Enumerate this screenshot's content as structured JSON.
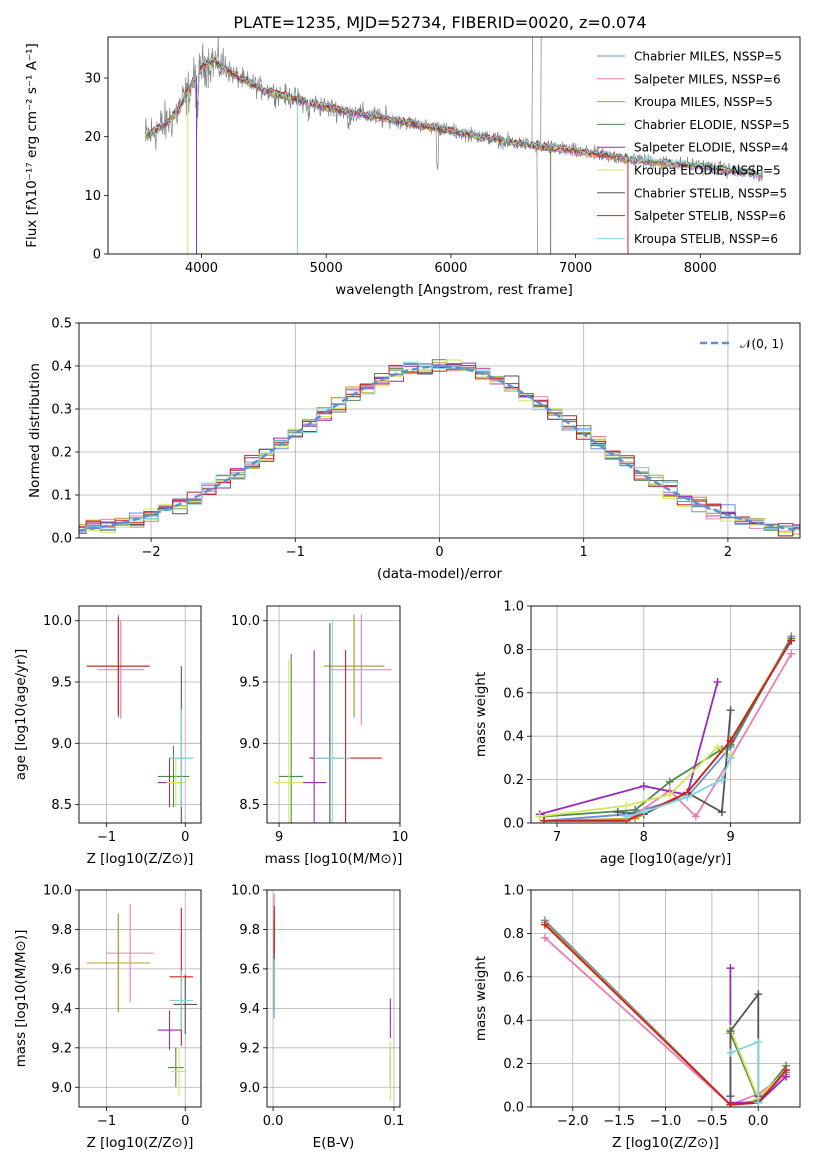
{
  "colors": [
    "#6a8fd8",
    "#e87fb0",
    "#b8a020",
    "#4f8a4f",
    "#9a2ab8",
    "#d4e65a",
    "#555555",
    "#cc2222",
    "#7fd6df"
  ],
  "chart_data": [
    {
      "id": "spectrum",
      "type": "line",
      "title": "PLATE=1235, MJD=52734, FIBERID=0020, z=0.074",
      "xlabel": "wavelength [Angstrom, rest frame]",
      "ylabel": "Flux [fλ10⁻¹⁷ erg cm⁻² s⁻¹ A⁻¹]",
      "xlim": [
        3250,
        8800
      ],
      "ylim": [
        0,
        37
      ],
      "xticks": [
        4000,
        5000,
        6000,
        7000,
        8000
      ],
      "yticks": [
        0,
        10,
        20,
        30
      ],
      "legend_position": "top-right",
      "legend": [
        "Chabrier MILES, NSSP=5",
        "Salpeter MILES, NSSP=6",
        "Kroupa MILES, NSSP=5",
        "Chabrier ELODIE, NSSP=5",
        "Salpeter ELODIE, NSSP=4",
        "Kroupa ELODIE, NSSP=5",
        "Chabrier STELIB, NSSP=5",
        "Salpeter STELIB, NSSP=6",
        "Kroupa STELIB, NSSP=6"
      ],
      "continuum": {
        "x": [
          3550,
          3700,
          3800,
          3900,
          4000,
          4100,
          4300,
          4500,
          5000,
          5500,
          6000,
          6500,
          7000,
          7500,
          8000,
          8500
        ],
        "y": [
          20,
          22,
          24,
          28,
          32,
          33,
          30,
          28,
          25,
          23,
          21,
          19,
          17.5,
          16,
          15,
          13.5
        ]
      }
    },
    {
      "id": "residuals",
      "type": "histogram",
      "xlabel": "(data-model)/error",
      "ylabel": "Normed distribution",
      "xlim": [
        -2.5,
        2.5
      ],
      "ylim": [
        0,
        0.5
      ],
      "xticks": [
        -2,
        -1,
        0,
        1,
        2
      ],
      "yticks": [
        0.0,
        0.1,
        0.2,
        0.3,
        0.4,
        0.5
      ],
      "legend": [
        "𝒩(0, 1)"
      ],
      "legend_position": "top-right"
    },
    {
      "id": "age_vs_Z",
      "type": "scatter",
      "xlabel": "Z [log10(Z/Z⊙)]",
      "ylabel": "age  [log10(age/yr)]",
      "xlim": [
        -1.35,
        0.2
      ],
      "ylim": [
        8.35,
        10.12
      ],
      "xticks": [
        -1,
        0
      ],
      "yticks": [
        8.5,
        9.0,
        9.5,
        10.0
      ],
      "points": [
        {
          "x": -0.85,
          "xerr": 0.4,
          "y": 9.63,
          "yerr": 0.42
        },
        {
          "x": -0.82,
          "xerr": 0.3,
          "y": 9.6,
          "yerr": 0.4
        },
        {
          "x": -0.85,
          "xerr": 0.4,
          "y": 9.63,
          "yerr": 0.4
        },
        {
          "x": -0.15,
          "xerr": 0.2,
          "y": 8.73,
          "yerr": 0.25
        },
        {
          "x": -0.2,
          "xerr": 0.15,
          "y": 8.68,
          "yerr": 0.2
        },
        {
          "x": -0.12,
          "xerr": 0.12,
          "y": 8.68,
          "yerr": 0.2
        },
        {
          "x": -0.05,
          "xerr": 0.15,
          "y": 8.88,
          "yerr": 0.75
        },
        {
          "x": -0.85,
          "xerr": 0.4,
          "y": 9.63,
          "yerr": 0.4
        },
        {
          "x": -0.05,
          "xerr": 0.15,
          "y": 8.88,
          "yerr": 0.4
        }
      ]
    },
    {
      "id": "age_vs_mass",
      "type": "scatter",
      "xlabel": "mass [log10(M/M⊙)]",
      "ylabel": "",
      "xlim": [
        8.9,
        10.0
      ],
      "ylim": [
        8.35,
        10.12
      ],
      "xticks": [
        9,
        10
      ],
      "yticks": [
        8.5,
        9.0,
        9.5,
        10.0
      ],
      "points": [
        {
          "x": 9.62,
          "xerr": 0.25,
          "y": 9.63,
          "yerr": 0.42
        },
        {
          "x": 9.68,
          "xerr": 0.25,
          "y": 9.6,
          "yerr": 0.45
        },
        {
          "x": 9.62,
          "xerr": 0.25,
          "y": 9.63,
          "yerr": 0.4
        },
        {
          "x": 9.1,
          "xerr": 0.1,
          "y": 8.73,
          "yerr": 1.0
        },
        {
          "x": 9.29,
          "xerr": 0.1,
          "y": 8.68,
          "yerr": 1.08
        },
        {
          "x": 9.08,
          "xerr": 0.12,
          "y": 8.68,
          "yerr": 1.0
        },
        {
          "x": 9.42,
          "xerr": 0.15,
          "y": 8.88,
          "yerr": 1.1
        },
        {
          "x": 9.55,
          "xerr": 0.3,
          "y": 8.88,
          "yerr": 0.88
        },
        {
          "x": 9.44,
          "xerr": 0.15,
          "y": 8.88,
          "yerr": 1.13
        }
      ]
    },
    {
      "id": "weight_vs_age",
      "type": "line",
      "xlabel": "age  [log10(age/yr)]",
      "ylabel": "mass weight",
      "xlim": [
        6.7,
        9.8
      ],
      "ylim": [
        0.0,
        1.0
      ],
      "xticks": [
        7,
        8,
        9
      ],
      "yticks": [
        0.0,
        0.2,
        0.4,
        0.6,
        0.8,
        1.0
      ],
      "series": [
        {
          "x": [
            6.85,
            7.8,
            8.5,
            9.0,
            9.7
          ],
          "y": [
            0.01,
            0.04,
            0.12,
            0.35,
            0.86
          ]
        },
        {
          "x": [
            6.85,
            7.8,
            8.3,
            8.6,
            9.0,
            9.7
          ],
          "y": [
            0.01,
            0.01,
            0.15,
            0.03,
            0.3,
            0.78
          ]
        },
        {
          "x": [
            6.85,
            7.9,
            8.5,
            9.0,
            9.7
          ],
          "y": [
            0.01,
            0.02,
            0.14,
            0.38,
            0.85
          ]
        },
        {
          "x": [
            6.85,
            7.9,
            8.3,
            8.9,
            9.0,
            9.7
          ],
          "y": [
            0.03,
            0.06,
            0.19,
            0.34,
            0.36,
            0.85
          ]
        },
        {
          "x": [
            6.8,
            8.0,
            8.5,
            8.85
          ],
          "y": [
            0.04,
            0.17,
            0.13,
            0.65
          ]
        },
        {
          "x": [
            6.8,
            7.8,
            8.3,
            8.85,
            9.0
          ],
          "y": [
            0.03,
            0.08,
            0.13,
            0.35,
            0.31
          ]
        },
        {
          "x": [
            7.7,
            8.0,
            8.5,
            8.9,
            9.0
          ],
          "y": [
            0.05,
            0.04,
            0.14,
            0.05,
            0.52
          ]
        },
        {
          "x": [
            6.85,
            7.8,
            8.5,
            9.0,
            9.7
          ],
          "y": [
            0.01,
            0.01,
            0.14,
            0.38,
            0.84
          ]
        },
        {
          "x": [
            7.8,
            8.0,
            8.5,
            8.9,
            9.0
          ],
          "y": [
            0.03,
            0.05,
            0.12,
            0.2,
            0.3
          ]
        }
      ]
    },
    {
      "id": "mass_vs_Z",
      "type": "scatter",
      "xlabel": "Z [log10(Z/Z⊙)]",
      "ylabel": "mass [log10(M/M⊙)]",
      "xlim": [
        -1.35,
        0.2
      ],
      "ylim": [
        8.9,
        10.0
      ],
      "xticks": [
        -1,
        0
      ],
      "yticks": [
        9.0,
        9.2,
        9.4,
        9.6,
        9.8,
        10.0
      ],
      "points": [
        {
          "x": -0.85,
          "xerr": 0.4,
          "y": 9.63,
          "yerr": 0.25
        },
        {
          "x": -0.7,
          "xerr": 0.3,
          "y": 9.68,
          "yerr": 0.25
        },
        {
          "x": -0.85,
          "xerr": 0.4,
          "y": 9.63,
          "yerr": 0.25
        },
        {
          "x": -0.12,
          "xerr": 0.1,
          "y": 9.1,
          "yerr": 0.1
        },
        {
          "x": -0.2,
          "xerr": 0.15,
          "y": 9.29,
          "yerr": 0.1
        },
        {
          "x": -0.08,
          "xerr": 0.1,
          "y": 9.08,
          "yerr": 0.12
        },
        {
          "x": 0.0,
          "xerr": 0.15,
          "y": 9.42,
          "yerr": 0.15
        },
        {
          "x": -0.05,
          "xerr": 0.15,
          "y": 9.56,
          "yerr": 0.35
        },
        {
          "x": -0.05,
          "xerr": 0.15,
          "y": 9.44,
          "yerr": 0.15
        }
      ]
    },
    {
      "id": "mass_vs_ebv",
      "type": "scatter",
      "xlabel": "E(B-V)",
      "ylabel": "",
      "xlim": [
        -0.005,
        0.105
      ],
      "ylim": [
        8.9,
        10.0
      ],
      "xticks": [
        0.0,
        0.1
      ],
      "yticks": [
        9.0,
        9.2,
        9.4,
        9.6,
        9.8,
        10.0
      ],
      "points": [
        {
          "x": 0.001,
          "xerr": 0,
          "y": 9.63,
          "yerr": 0.25
        },
        {
          "x": 0.001,
          "xerr": 0,
          "y": 9.68,
          "yerr": 0.3
        },
        {
          "x": 0.001,
          "xerr": 0,
          "y": 9.63,
          "yerr": 0.25
        },
        {
          "x": 0.097,
          "xerr": 0,
          "y": 9.1,
          "yerr": 0.1
        },
        {
          "x": 0.097,
          "xerr": 0,
          "y": 9.35,
          "yerr": 0.1
        },
        {
          "x": 0.097,
          "xerr": 0,
          "y": 9.08,
          "yerr": 0.15
        },
        {
          "x": 0.001,
          "xerr": 0,
          "y": 9.6,
          "yerr": 0.25
        },
        {
          "x": 0.001,
          "xerr": 0,
          "y": 9.8,
          "yerr": 0.12
        },
        {
          "x": 0.001,
          "xerr": 0,
          "y": 9.5,
          "yerr": 0.15
        }
      ]
    },
    {
      "id": "weight_vs_Z",
      "type": "line",
      "xlabel": "Z [log10(Z/Z⊙)]",
      "ylabel": "mass weight",
      "xlim": [
        -2.45,
        0.45
      ],
      "ylim": [
        0.0,
        1.0
      ],
      "xticks": [
        -2.0,
        -1.5,
        -1.0,
        -0.5,
        0.0
      ],
      "yticks": [
        0.0,
        0.2,
        0.4,
        0.6,
        0.8,
        1.0
      ],
      "series": [
        {
          "x": [
            -2.3,
            -0.3,
            0.0,
            0.3
          ],
          "y": [
            0.86,
            0.01,
            0.02,
            0.16
          ]
        },
        {
          "x": [
            -2.3,
            -0.3,
            0.0,
            0.3
          ],
          "y": [
            0.78,
            0.01,
            0.06,
            0.15
          ]
        },
        {
          "x": [
            -2.3,
            -0.3,
            0.0,
            0.3
          ],
          "y": [
            0.85,
            0.01,
            0.03,
            0.17
          ]
        },
        {
          "x": [
            -0.3,
            0.0,
            0.3
          ],
          "y": [
            0.34,
            0.03,
            0.19
          ]
        },
        {
          "x": [
            -0.3,
            -0.3,
            0.0,
            0.3
          ],
          "y": [
            0.64,
            0.02,
            0.02,
            0.14
          ]
        },
        {
          "x": [
            -0.3,
            0.0,
            0.3
          ],
          "y": [
            0.36,
            0.04,
            0.17
          ]
        },
        {
          "x": [
            -0.3,
            -0.3,
            0.0,
            0.0
          ],
          "y": [
            0.05,
            0.35,
            0.52,
            0.05
          ]
        },
        {
          "x": [
            -2.3,
            -0.3,
            0.0,
            0.3
          ],
          "y": [
            0.84,
            0.01,
            0.02,
            0.17
          ]
        },
        {
          "x": [
            -0.3,
            0.0,
            0.0
          ],
          "y": [
            0.25,
            0.3,
            0.02
          ]
        }
      ]
    }
  ]
}
